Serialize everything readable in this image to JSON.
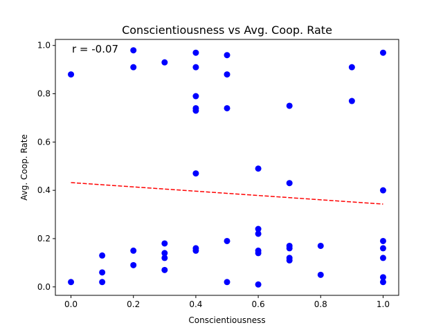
{
  "chart_data": {
    "type": "scatter",
    "title": "Conscientiousness vs Avg. Coop. Rate",
    "xlabel": "Conscientiousness",
    "ylabel": "Avg. Coop. Rate",
    "xlim": [
      -0.05,
      1.05
    ],
    "ylim": [
      -0.035,
      1.025
    ],
    "xticks": [
      0.0,
      0.2,
      0.4,
      0.6,
      0.8,
      1.0
    ],
    "xtick_labels": [
      "0.0",
      "0.2",
      "0.4",
      "0.6",
      "0.8",
      "1.0"
    ],
    "yticks": [
      0.0,
      0.2,
      0.4,
      0.6,
      0.8,
      1.0
    ],
    "ytick_labels": [
      "0.0",
      "0.2",
      "0.4",
      "0.6",
      "0.8",
      "1.0"
    ],
    "grid": false,
    "annotation": "r = -0.07",
    "point_color": "#0000ff",
    "trend_color": "#ff0000",
    "points": [
      {
        "x": 0.0,
        "y": 0.88
      },
      {
        "x": 0.0,
        "y": 0.02
      },
      {
        "x": 0.1,
        "y": 0.13
      },
      {
        "x": 0.1,
        "y": 0.06
      },
      {
        "x": 0.1,
        "y": 0.02
      },
      {
        "x": 0.2,
        "y": 0.98
      },
      {
        "x": 0.2,
        "y": 0.91
      },
      {
        "x": 0.2,
        "y": 0.15
      },
      {
        "x": 0.2,
        "y": 0.09
      },
      {
        "x": 0.3,
        "y": 0.93
      },
      {
        "x": 0.3,
        "y": 0.18
      },
      {
        "x": 0.3,
        "y": 0.14
      },
      {
        "x": 0.3,
        "y": 0.12
      },
      {
        "x": 0.3,
        "y": 0.07
      },
      {
        "x": 0.4,
        "y": 0.97
      },
      {
        "x": 0.4,
        "y": 0.91
      },
      {
        "x": 0.4,
        "y": 0.79
      },
      {
        "x": 0.4,
        "y": 0.74
      },
      {
        "x": 0.4,
        "y": 0.73
      },
      {
        "x": 0.4,
        "y": 0.47
      },
      {
        "x": 0.4,
        "y": 0.16
      },
      {
        "x": 0.4,
        "y": 0.15
      },
      {
        "x": 0.5,
        "y": 0.96
      },
      {
        "x": 0.5,
        "y": 0.88
      },
      {
        "x": 0.5,
        "y": 0.74
      },
      {
        "x": 0.5,
        "y": 0.19
      },
      {
        "x": 0.5,
        "y": 0.02
      },
      {
        "x": 0.6,
        "y": 0.49
      },
      {
        "x": 0.6,
        "y": 0.24
      },
      {
        "x": 0.6,
        "y": 0.22
      },
      {
        "x": 0.6,
        "y": 0.15
      },
      {
        "x": 0.6,
        "y": 0.14
      },
      {
        "x": 0.6,
        "y": 0.01
      },
      {
        "x": 0.7,
        "y": 0.75
      },
      {
        "x": 0.7,
        "y": 0.43
      },
      {
        "x": 0.7,
        "y": 0.17
      },
      {
        "x": 0.7,
        "y": 0.16
      },
      {
        "x": 0.7,
        "y": 0.12
      },
      {
        "x": 0.7,
        "y": 0.11
      },
      {
        "x": 0.8,
        "y": 0.17
      },
      {
        "x": 0.8,
        "y": 0.05
      },
      {
        "x": 0.9,
        "y": 0.91
      },
      {
        "x": 0.9,
        "y": 0.77
      },
      {
        "x": 1.0,
        "y": 0.97
      },
      {
        "x": 1.0,
        "y": 0.4
      },
      {
        "x": 1.0,
        "y": 0.19
      },
      {
        "x": 1.0,
        "y": 0.16
      },
      {
        "x": 1.0,
        "y": 0.12
      },
      {
        "x": 1.0,
        "y": 0.04
      },
      {
        "x": 1.0,
        "y": 0.02
      }
    ],
    "trend_line": {
      "x": [
        0.0,
        1.0
      ],
      "y": [
        0.432,
        0.343
      ],
      "style": "dashed"
    }
  }
}
